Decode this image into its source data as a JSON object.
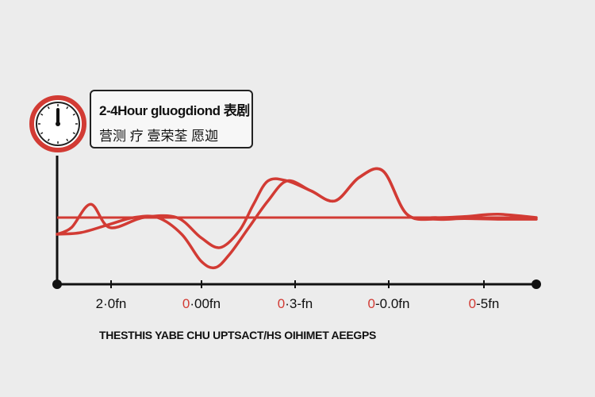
{
  "legend": {
    "line1": "2-4Hour gluogdiond 表剧",
    "line2": "营测 疗 壹荣荃   愿迦"
  },
  "caption": "THESTHIS YABE CHU UPTSACT/HS OIHIMET AEEGPS",
  "colors": {
    "series": "#d23b34",
    "axis": "#111111",
    "background": "#ececec"
  },
  "icon": "clock-icon",
  "chart_data": {
    "type": "line",
    "title": "",
    "xlabel": "THESTHIS YABE CHU UPTSACT/HS OIHIMET AEEGPS",
    "ylabel": "",
    "ticks": [
      {
        "lead": "",
        "rest": "2·0fn"
      },
      {
        "lead": "0",
        "rest": "·00fn"
      },
      {
        "lead": "0",
        "rest": "·3-fn"
      },
      {
        "lead": "0",
        "rest": "-0.0fn"
      },
      {
        "lead": "0",
        "rest": "-5fn"
      }
    ],
    "xlim": [
      0,
      10
    ],
    "ylim": [
      -1.5,
      2.5
    ],
    "grid": false,
    "baseline": 0.5,
    "series": [
      {
        "x": [
          0,
          0.3,
          0.7,
          1.1,
          1.8,
          2.5,
          3.0,
          3.4,
          3.8,
          4.1,
          4.4,
          4.8,
          5.3,
          5.8,
          6.3,
          6.8,
          7.3,
          7.9,
          8.5,
          9.2,
          10
        ],
        "y": [
          0,
          0.2,
          0.9,
          0.2,
          0.5,
          0.5,
          -0.1,
          -0.4,
          0.1,
          0.9,
          1.6,
          1.6,
          1.3,
          1.0,
          1.7,
          1.9,
          0.6,
          0.5,
          0.53,
          0.6,
          0.5
        ]
      },
      {
        "x": [
          0,
          0.5,
          1.1,
          1.6,
          2.1,
          2.6,
          3.0,
          3.3,
          3.6,
          4.0,
          4.4,
          4.8,
          5.3,
          5.8,
          6.3,
          6.8,
          7.3,
          7.9,
          8.5,
          9.2,
          10
        ],
        "y": [
          0,
          0.05,
          0.3,
          0.5,
          0.5,
          0.0,
          -0.8,
          -1.0,
          -0.6,
          0.2,
          1.0,
          1.6,
          1.3,
          1.0,
          1.7,
          1.9,
          0.6,
          0.45,
          0.47,
          0.45,
          0.45
        ]
      }
    ]
  }
}
